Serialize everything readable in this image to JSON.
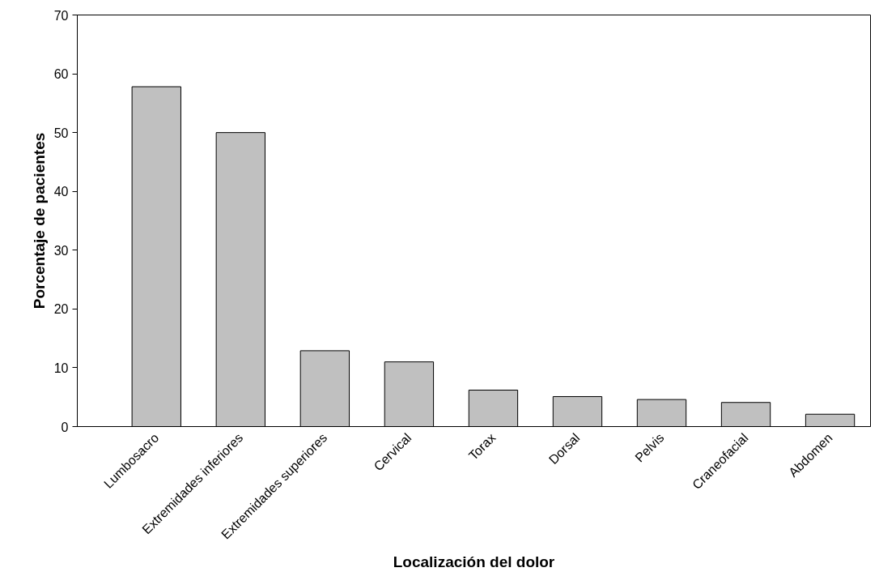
{
  "chart_data": {
    "type": "bar",
    "xlabel": "Localización del dolor",
    "ylabel": "Porcentaje de pacientes",
    "categories": [
      "Lumbosacro",
      "Extremidades inferiores",
      "Extremidades superiores",
      "Cervical",
      "Torax",
      "Dorsal",
      "Pelvis",
      "Craneofacial",
      "Abdomen"
    ],
    "values": [
      57.8,
      50,
      12.9,
      11,
      6.2,
      5.1,
      4.6,
      4.1,
      2.1
    ],
    "color": "#c0c0c0",
    "ylim": [
      0,
      70
    ],
    "yticks": [
      0,
      10,
      20,
      30,
      40,
      50,
      60,
      70
    ],
    "grid": false
  }
}
